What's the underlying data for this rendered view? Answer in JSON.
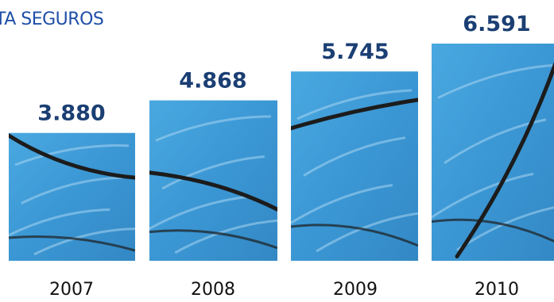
{
  "title": "TA SEGUROS",
  "colors": {
    "bar_fill": "#3d9ad6",
    "bar_dark": "#2f6f9e",
    "streak": "#1c1c1c",
    "value_text": "#1b3f73",
    "title_text": "#1f4ea8"
  },
  "chart_data": {
    "type": "bar",
    "title": "",
    "xlabel": "",
    "ylabel": "",
    "categories": [
      "2007",
      "2008",
      "2009",
      "2010"
    ],
    "values": [
      3.88,
      4.868,
      5.745,
      6.591
    ],
    "value_labels": [
      "3.880",
      "4.868",
      "5.745",
      "6.591"
    ],
    "ylim": [
      0,
      7
    ],
    "grid": false,
    "legend": "none"
  }
}
